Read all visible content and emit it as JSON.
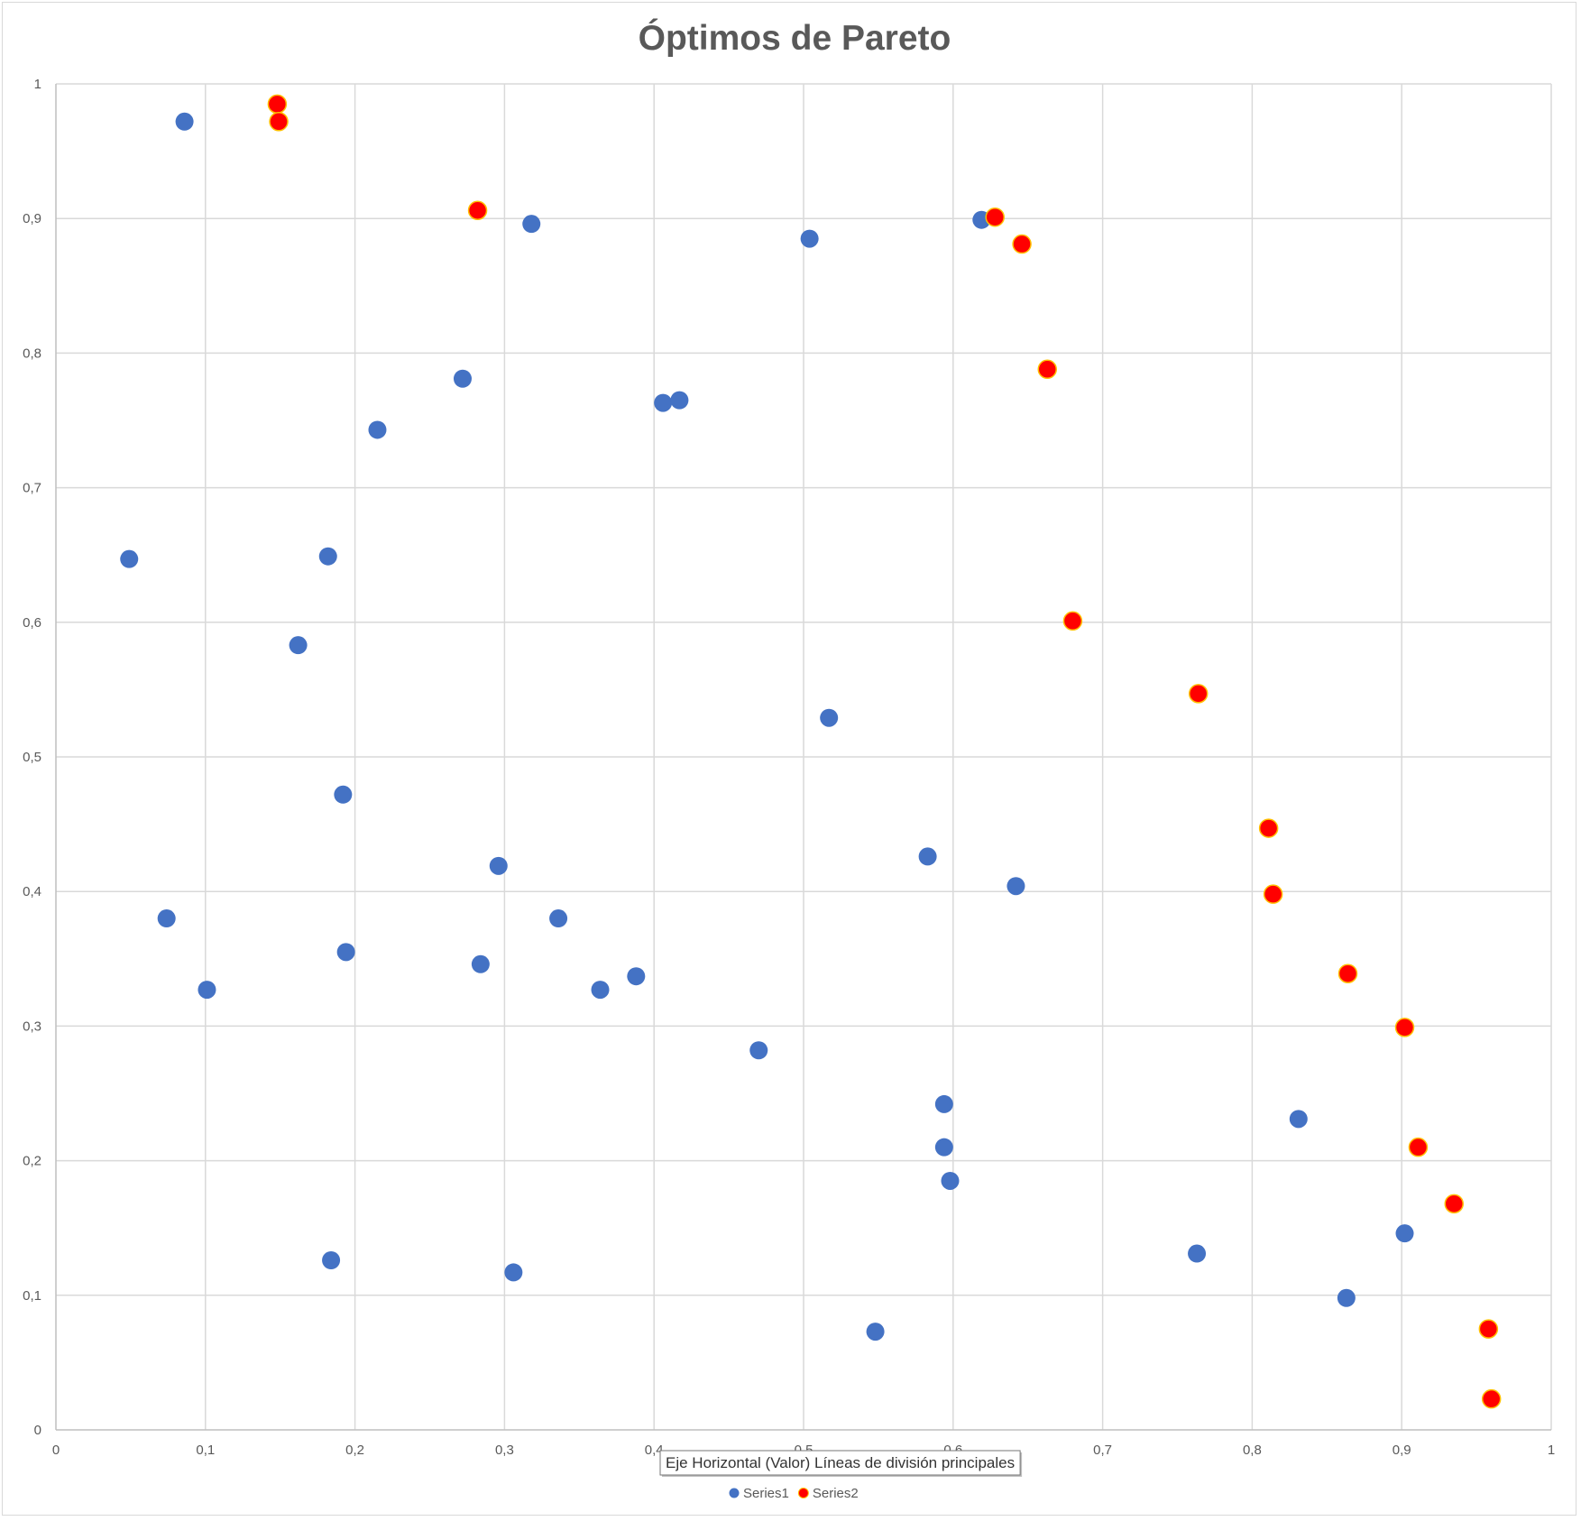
{
  "chart_data": {
    "type": "scatter",
    "title": "Óptimos de Pareto",
    "xlabel": "",
    "ylabel": "",
    "xlim": [
      0,
      1
    ],
    "ylim": [
      0,
      1
    ],
    "xticks": [
      "0",
      "0,1",
      "0,2",
      "0,3",
      "0,4",
      "0,5",
      "0,6",
      "0,7",
      "0,8",
      "0,9",
      "1"
    ],
    "yticks": [
      "0",
      "0,1",
      "0,2",
      "0,3",
      "0,4",
      "0,5",
      "0,6",
      "0,7",
      "0,8",
      "0,9",
      "1"
    ],
    "grid": true,
    "legend_position": "bottom",
    "tooltip": "Eje Horizontal (Valor)  Líneas de división principales",
    "series": [
      {
        "name": "Series1",
        "color": "#4472c4",
        "points": [
          [
            0.086,
            0.972
          ],
          [
            0.318,
            0.896
          ],
          [
            0.504,
            0.885
          ],
          [
            0.619,
            0.899
          ],
          [
            0.272,
            0.781
          ],
          [
            0.215,
            0.743
          ],
          [
            0.406,
            0.763
          ],
          [
            0.417,
            0.765
          ],
          [
            0.049,
            0.647
          ],
          [
            0.182,
            0.649
          ],
          [
            0.162,
            0.583
          ],
          [
            0.517,
            0.529
          ],
          [
            0.192,
            0.472
          ],
          [
            0.296,
            0.419
          ],
          [
            0.583,
            0.426
          ],
          [
            0.642,
            0.404
          ],
          [
            0.074,
            0.38
          ],
          [
            0.336,
            0.38
          ],
          [
            0.194,
            0.355
          ],
          [
            0.284,
            0.346
          ],
          [
            0.101,
            0.327
          ],
          [
            0.364,
            0.327
          ],
          [
            0.388,
            0.337
          ],
          [
            0.47,
            0.282
          ],
          [
            0.594,
            0.242
          ],
          [
            0.594,
            0.21
          ],
          [
            0.598,
            0.185
          ],
          [
            0.831,
            0.231
          ],
          [
            0.184,
            0.126
          ],
          [
            0.306,
            0.117
          ],
          [
            0.548,
            0.073
          ],
          [
            0.763,
            0.131
          ],
          [
            0.902,
            0.146
          ],
          [
            0.863,
            0.098
          ]
        ]
      },
      {
        "name": "Series2",
        "color": "#ff0000",
        "points": [
          [
            0.148,
            0.985
          ],
          [
            0.149,
            0.972
          ],
          [
            0.282,
            0.906
          ],
          [
            0.628,
            0.901
          ],
          [
            0.646,
            0.881
          ],
          [
            0.663,
            0.788
          ],
          [
            0.68,
            0.601
          ],
          [
            0.764,
            0.547
          ],
          [
            0.811,
            0.447
          ],
          [
            0.814,
            0.398
          ],
          [
            0.864,
            0.339
          ],
          [
            0.902,
            0.299
          ],
          [
            0.911,
            0.21
          ],
          [
            0.935,
            0.168
          ],
          [
            0.958,
            0.075
          ],
          [
            0.96,
            0.023
          ]
        ]
      }
    ]
  }
}
